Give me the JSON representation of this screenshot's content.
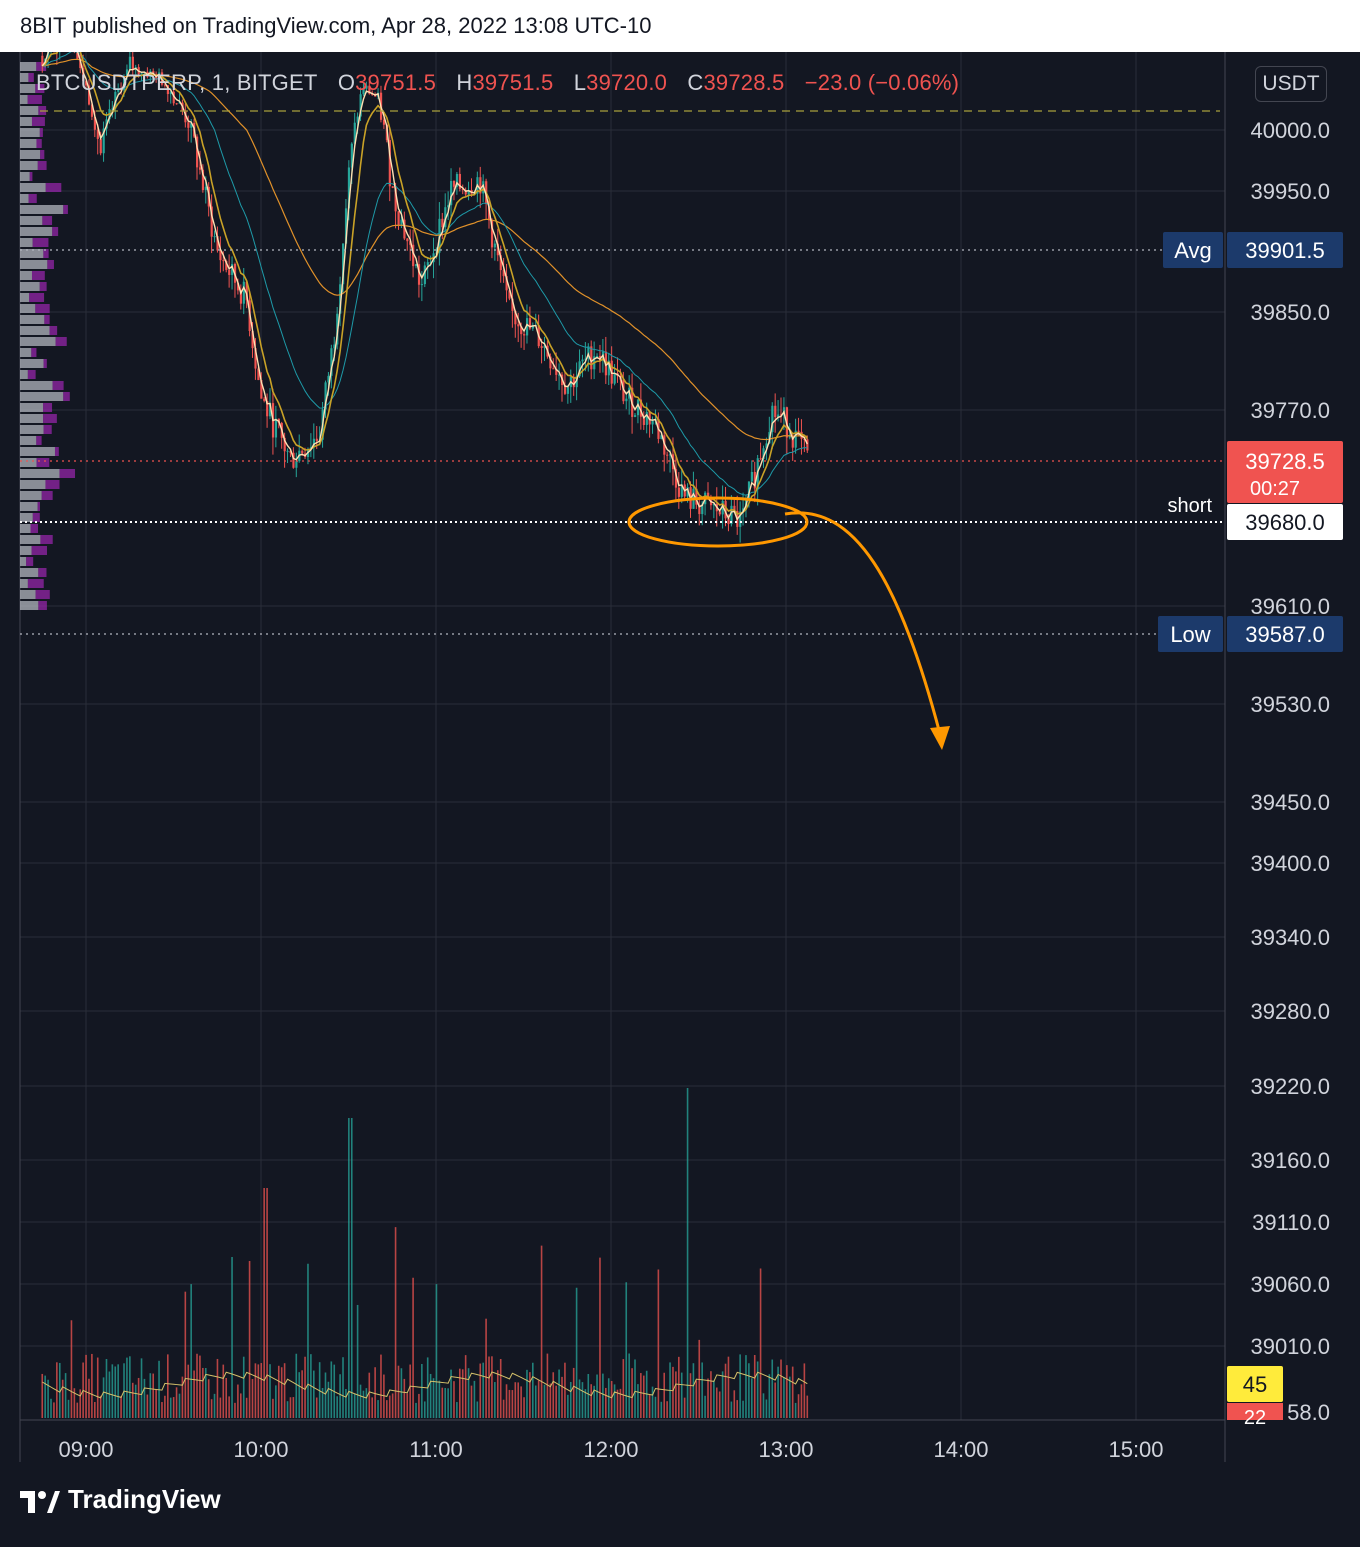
{
  "header": {
    "text": "8BIT published on TradingView.com, Apr 28, 2022 13:08 UTC-10"
  },
  "legend": {
    "symbol": "BTCUSDTPERP, 1, BITGET",
    "o_label": "O",
    "o_value": "39751.5",
    "h_label": "H",
    "h_value": "39751.5",
    "l_label": "L",
    "l_value": "39720.0",
    "c_label": "C",
    "c_value": "39728.5",
    "change": "−23.0 (−0.06%)"
  },
  "currency": "USDT",
  "brand": "TradingView",
  "colors": {
    "background": "#131722",
    "grid": "#2a2e39",
    "up": "#26a69a",
    "down": "#ef5350",
    "ema_fast": "#ffe0b2",
    "ema_mid": "#c9a227",
    "ema_teal": "#1e9aa8",
    "ema_slow": "#e0912a",
    "annotation": "#ff9800",
    "volume_profile_up": "#b2b5be",
    "volume_profile_down": "#9c27b0"
  },
  "chart_data": {
    "type": "candlestick",
    "interval": "1m",
    "price_axis_labels": [
      "40000.0",
      "39950.0",
      "39850.0",
      "39770.0",
      "39610.0",
      "39530.0",
      "39450.0",
      "39400.0",
      "39340.0",
      "39280.0",
      "39220.0",
      "39160.0",
      "39110.0",
      "39060.0",
      "39010.0"
    ],
    "time_axis_labels": [
      "09:00",
      "10:00",
      "11:00",
      "12:00",
      "13:00",
      "14:00",
      "15:00"
    ],
    "price_path": [
      {
        "t": "08:45",
        "p": 40110
      },
      {
        "t": "08:55",
        "p": 40140
      },
      {
        "t": "09:05",
        "p": 39980
      },
      {
        "t": "09:15",
        "p": 40100
      },
      {
        "t": "09:25",
        "p": 40080
      },
      {
        "t": "09:35",
        "p": 40010
      },
      {
        "t": "09:45",
        "p": 39900
      },
      {
        "t": "09:55",
        "p": 39860
      },
      {
        "t": "10:00",
        "p": 39780
      },
      {
        "t": "10:10",
        "p": 39730
      },
      {
        "t": "10:20",
        "p": 39750
      },
      {
        "t": "10:25",
        "p": 39830
      },
      {
        "t": "10:30",
        "p": 39960
      },
      {
        "t": "10:35",
        "p": 40060
      },
      {
        "t": "10:40",
        "p": 40040
      },
      {
        "t": "10:45",
        "p": 39950
      },
      {
        "t": "10:55",
        "p": 39870
      },
      {
        "t": "11:05",
        "p": 39950
      },
      {
        "t": "11:15",
        "p": 39960
      },
      {
        "t": "11:25",
        "p": 39850
      },
      {
        "t": "11:35",
        "p": 39830
      },
      {
        "t": "11:45",
        "p": 39790
      },
      {
        "t": "11:55",
        "p": 39820
      },
      {
        "t": "12:05",
        "p": 39780
      },
      {
        "t": "12:15",
        "p": 39760
      },
      {
        "t": "12:25",
        "p": 39700
      },
      {
        "t": "12:35",
        "p": 39690
      },
      {
        "t": "12:45",
        "p": 39680
      },
      {
        "t": "12:55",
        "p": 39770
      },
      {
        "t": "13:00",
        "p": 39760
      },
      {
        "t": "13:08",
        "p": 39728.5
      }
    ],
    "lines": {
      "avg": {
        "label": "Avg",
        "value": "39901.5"
      },
      "low": {
        "label": "Low",
        "value": "39587.0"
      },
      "short": {
        "label": "short",
        "value": "39680.0"
      },
      "last": {
        "value": "39728.5",
        "countdown": "00:27"
      }
    },
    "indicator_tags": [
      "45",
      "22"
    ],
    "annotation": "short entry with downward projection arrow"
  }
}
